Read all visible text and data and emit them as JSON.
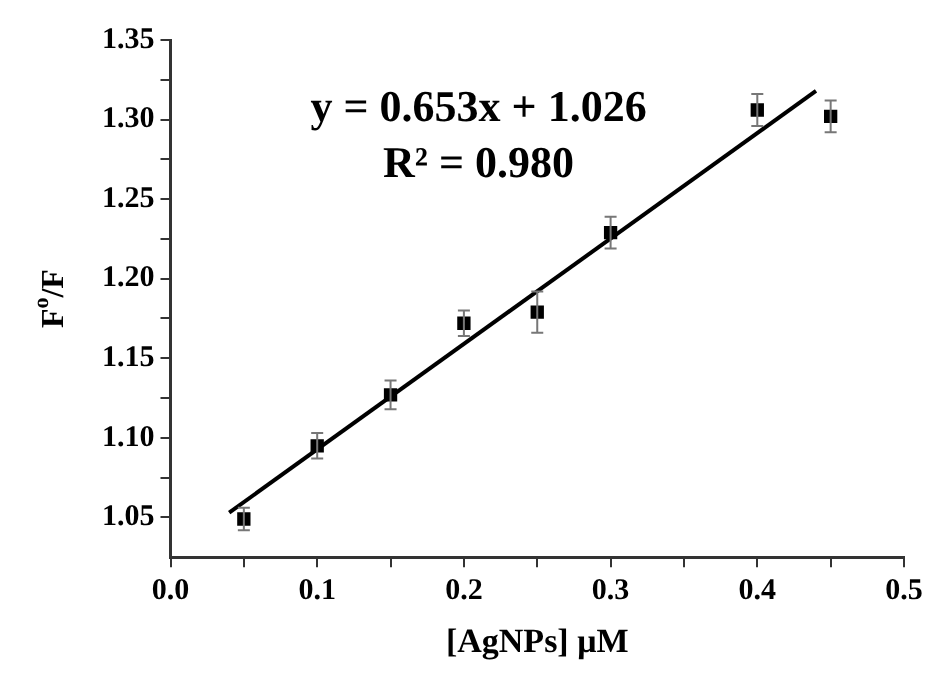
{
  "chart_data": {
    "type": "scatter",
    "xlabel": "[AgNPs] μM",
    "ylabel": "F$^{o}$/F",
    "annotations": [
      "y = 0.653x + 1.026",
      "R² = 0.980"
    ],
    "series": [
      {
        "color": "#000000",
        "marker": "square",
        "x": [
          0.05,
          0.1,
          0.15,
          0.2,
          0.25,
          0.3,
          0.4,
          0.45
        ],
        "values": [
          1.049,
          1.095,
          1.127,
          1.172,
          1.179,
          1.229,
          1.306,
          1.302
        ],
        "errors": [
          0.007,
          0.008,
          0.009,
          0.008,
          0.013,
          0.01,
          0.01,
          0.01
        ]
      },
      {
        "type": "line",
        "color": "#000000",
        "x": [
          0.04,
          0.44
        ],
        "values": [
          1.053,
          1.318
        ]
      }
    ],
    "grid": false,
    "legend": false,
    "xlim": [
      0,
      0.5
    ],
    "xticks": [
      {
        "value": 0,
        "label": "0.0"
      },
      {
        "value": 0.05,
        "label": null
      },
      0.1,
      {
        "value": 0.15,
        "label": null
      },
      0.2,
      {
        "value": 0.25,
        "label": null
      },
      0.3,
      {
        "value": 0.35,
        "label": null
      },
      0.4,
      {
        "value": 0.45,
        "label": null
      },
      0.5
    ],
    "ylim": [
      1.025,
      1.35
    ],
    "yticks": [
      1.05,
      {
        "value": 1.075,
        "label": null
      },
      {
        "value": 1.1,
        "label": "1.10"
      },
      {
        "value": 1.125,
        "label": null
      },
      1.15,
      {
        "value": 1.175,
        "label": null
      },
      {
        "value": 1.2,
        "label": "1.20"
      },
      {
        "value": 1.225,
        "label": null
      },
      1.25,
      {
        "value": 1.275,
        "label": null
      },
      {
        "value": 1.3,
        "label": "1.30"
      },
      {
        "value": 1.325,
        "label": null
      },
      1.35
    ]
  }
}
